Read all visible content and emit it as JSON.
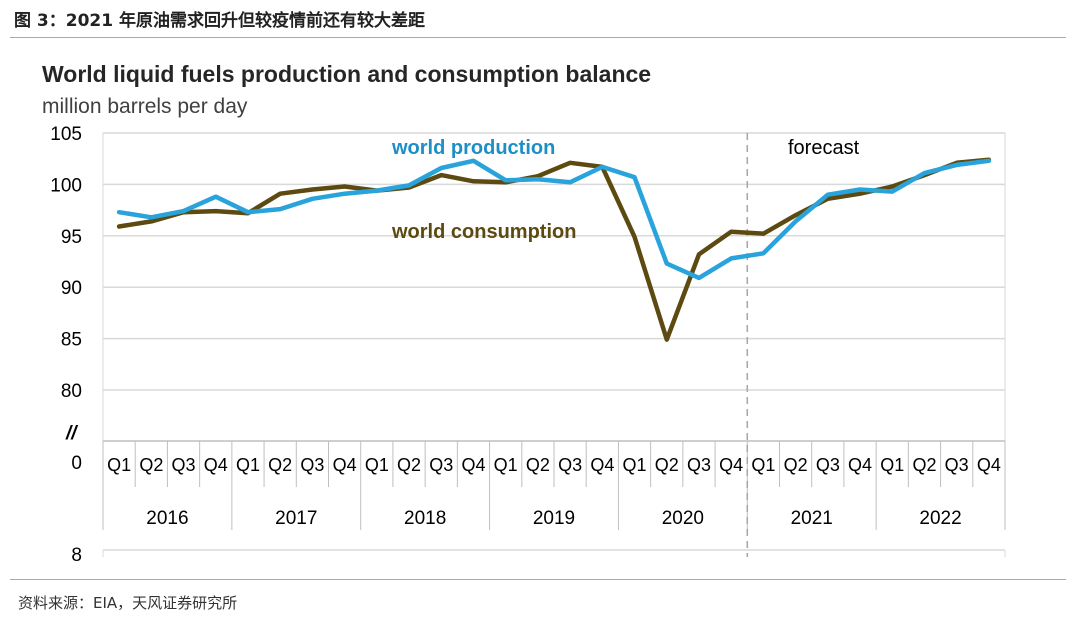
{
  "figure": {
    "caption": "图 3：2021 年原油需求回升但较疫情前还有较大差距",
    "source": "资料来源：EIA，天风证券研究所"
  },
  "chart_data": {
    "type": "line",
    "title": "World liquid fuels production and consumption balance",
    "subtitle": "million barrels per day",
    "ylim": [
      80,
      105
    ],
    "y_ticks": [
      "105",
      "100",
      "95",
      "90",
      "85",
      "80"
    ],
    "y_break_label": "//",
    "y_zero_label": "0",
    "lower_panel_tick": "8",
    "grid": true,
    "quarters": [
      "Q1",
      "Q2",
      "Q3",
      "Q4",
      "Q1",
      "Q2",
      "Q3",
      "Q4",
      "Q1",
      "Q2",
      "Q3",
      "Q4",
      "Q1",
      "Q2",
      "Q3",
      "Q4",
      "Q1",
      "Q2",
      "Q3",
      "Q4",
      "Q1",
      "Q2",
      "Q3",
      "Q4",
      "Q1",
      "Q2",
      "Q3",
      "Q4"
    ],
    "years": [
      "2016",
      "2017",
      "2018",
      "2019",
      "2020",
      "2021",
      "2022"
    ],
    "forecast_label": "forecast",
    "forecast_start_index": 20,
    "colors": {
      "production": "#29a3db",
      "consumption": "#5c4a10",
      "forecast_line": "#a6a6a6",
      "grid": "#d9d9d9"
    },
    "series": [
      {
        "name": "world production",
        "values": [
          97.3,
          96.8,
          97.4,
          98.8,
          97.3,
          97.6,
          98.6,
          99.1,
          99.4,
          99.9,
          101.6,
          102.3,
          100.4,
          100.5,
          100.2,
          101.7,
          100.7,
          92.3,
          90.9,
          92.8,
          93.3,
          96.4,
          99.0,
          99.5,
          99.3,
          101.1,
          101.9,
          102.3
        ]
      },
      {
        "name": "world consumption",
        "values": [
          95.9,
          96.4,
          97.3,
          97.4,
          97.2,
          99.1,
          99.5,
          99.8,
          99.4,
          99.7,
          100.9,
          100.3,
          100.2,
          100.8,
          102.1,
          101.7,
          94.9,
          84.9,
          93.2,
          95.4,
          95.2,
          97.0,
          98.6,
          99.1,
          99.8,
          100.9,
          102.1,
          102.4
        ]
      }
    ]
  }
}
